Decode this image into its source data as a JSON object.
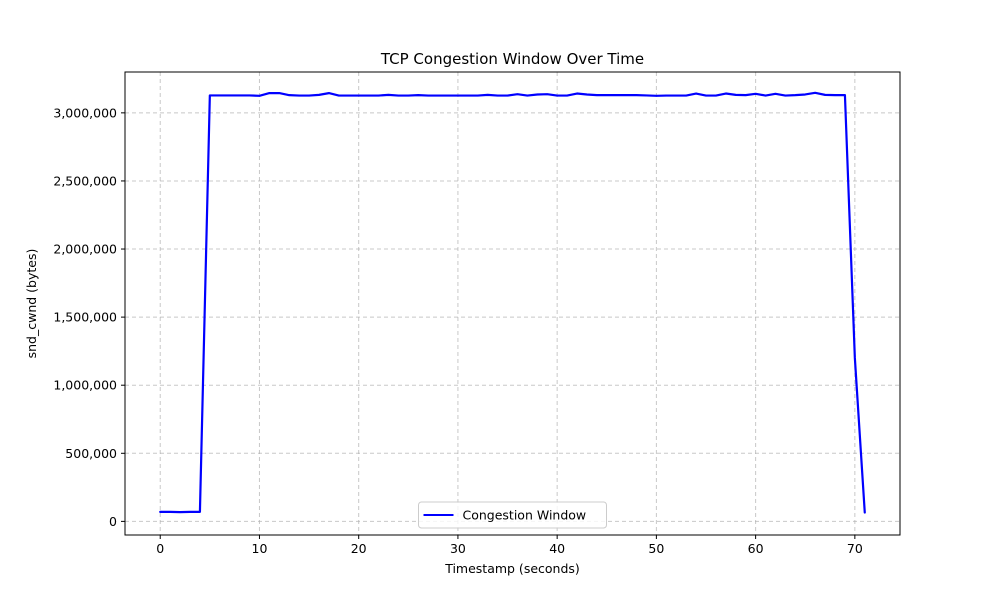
{
  "chart_data": {
    "type": "line",
    "title": "TCP Congestion Window Over Time",
    "xlabel": "Timestamp (seconds)",
    "ylabel": "snd_cwnd (bytes)",
    "xlim": [
      -3.55,
      74.55
    ],
    "ylim": [
      -100000,
      3300000
    ],
    "xticks": [
      0,
      10,
      20,
      30,
      40,
      50,
      60,
      70
    ],
    "xtick_labels": [
      "0",
      "10",
      "20",
      "30",
      "40",
      "50",
      "60",
      "70"
    ],
    "yticks": [
      0,
      500000,
      1000000,
      1500000,
      2000000,
      2500000,
      3000000
    ],
    "ytick_labels": [
      "0",
      "500,000",
      "1,000,000",
      "1,500,000",
      "2,000,000",
      "2,500,000",
      "3,000,000"
    ],
    "grid": true,
    "legend_position": "lower-center",
    "series": [
      {
        "name": "Congestion Window",
        "color": "#0000ff",
        "x": [
          0,
          1,
          2,
          3,
          4,
          5,
          6,
          7,
          8,
          9,
          10,
          11,
          12,
          13,
          14,
          15,
          16,
          17,
          18,
          19,
          20,
          21,
          22,
          23,
          24,
          25,
          26,
          27,
          28,
          29,
          30,
          31,
          32,
          33,
          34,
          35,
          36,
          37,
          38,
          39,
          40,
          41,
          42,
          43,
          44,
          45,
          46,
          47,
          48,
          49,
          50,
          51,
          52,
          53,
          54,
          55,
          56,
          57,
          58,
          59,
          60,
          61,
          62,
          63,
          64,
          65,
          66,
          67,
          68,
          69,
          70,
          71
        ],
        "y": [
          70000,
          70000,
          68000,
          70000,
          70000,
          3128000,
          3128000,
          3128000,
          3128000,
          3128000,
          3125000,
          3145000,
          3145000,
          3130000,
          3127000,
          3127000,
          3132000,
          3145000,
          3127000,
          3127000,
          3127000,
          3127000,
          3127000,
          3132000,
          3127000,
          3127000,
          3130000,
          3127000,
          3127000,
          3127000,
          3127000,
          3127000,
          3127000,
          3132000,
          3127000,
          3127000,
          3137000,
          3127000,
          3135000,
          3137000,
          3127000,
          3127000,
          3142000,
          3135000,
          3130000,
          3130000,
          3130000,
          3130000,
          3130000,
          3128000,
          3125000,
          3127000,
          3127000,
          3127000,
          3142000,
          3127000,
          3127000,
          3142000,
          3132000,
          3130000,
          3140000,
          3127000,
          3140000,
          3127000,
          3130000,
          3135000,
          3147000,
          3132000,
          3130000,
          3130000,
          1200000,
          65000
        ]
      }
    ]
  }
}
